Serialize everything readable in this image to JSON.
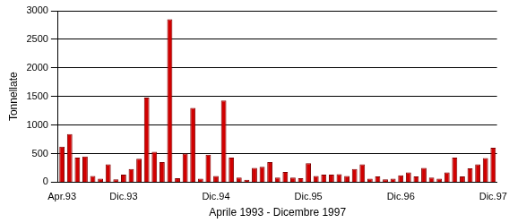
{
  "chart_data": {
    "type": "bar",
    "x_label": "Aprile 1993 - Dicembre 1997",
    "y_label": "Tonnellate",
    "categories": [
      "Apr.93",
      null,
      null,
      null,
      null,
      null,
      null,
      null,
      "Dic.93",
      null,
      null,
      null,
      null,
      null,
      null,
      null,
      null,
      null,
      null,
      null,
      "Dic.94",
      null,
      null,
      null,
      null,
      null,
      null,
      null,
      null,
      null,
      null,
      null,
      "Dic.95",
      null,
      null,
      null,
      null,
      null,
      null,
      null,
      null,
      null,
      null,
      null,
      "Dic.96",
      null,
      null,
      null,
      null,
      null,
      null,
      null,
      null,
      null,
      null,
      null,
      "Dic.97"
    ],
    "values": [
      620,
      840,
      430,
      450,
      110,
      60,
      310,
      50,
      130,
      230,
      410,
      1480,
      530,
      350,
      2850,
      70,
      500,
      1300,
      60,
      480,
      110,
      1430,
      430,
      80,
      40,
      250,
      270,
      350,
      80,
      180,
      80,
      70,
      330,
      110,
      130,
      130,
      140,
      110,
      230,
      310,
      60,
      100,
      50,
      60,
      120,
      170,
      100,
      250,
      80,
      60,
      170,
      430,
      100,
      240,
      310,
      420,
      600
    ],
    "color": "#d00000",
    "ylim": [
      0,
      3000
    ],
    "yticks": [
      0,
      500,
      1000,
      1500,
      2000,
      2500,
      3000
    ],
    "grid": true
  }
}
